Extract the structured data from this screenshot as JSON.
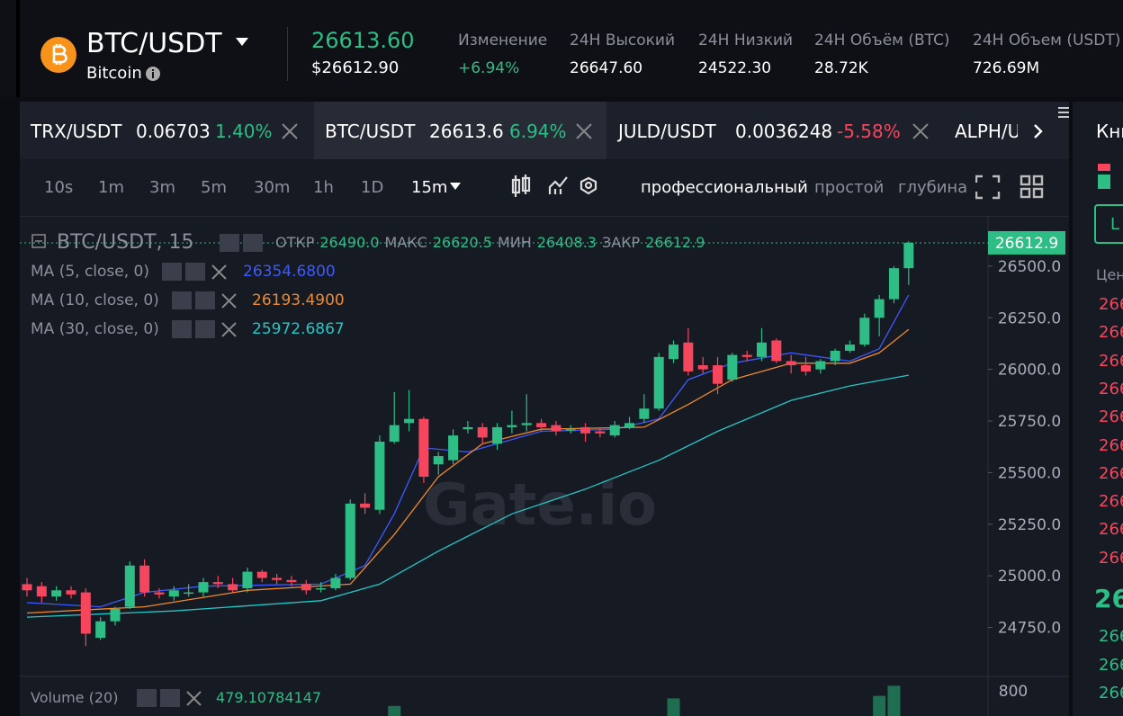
{
  "header": {
    "pair": "BTC/USDT",
    "name": "Bitcoin",
    "last": "26613.60",
    "last_usd": "$26612.90",
    "stats": [
      {
        "label": "Изменение",
        "value": "+6.94%"
      },
      {
        "label": "24H Высокий",
        "value": "26647.60"
      },
      {
        "label": "24H Низкий",
        "value": "24522.30"
      },
      {
        "label": "24H Объём (BTC)",
        "value": "28.72K"
      },
      {
        "label": "24H Объем (USDT)",
        "value": "726.69M"
      }
    ]
  },
  "tabs": [
    {
      "pair": "TRX/USDT",
      "price": "0.06703",
      "change": "1.40%"
    },
    {
      "pair": "BTC/USDT",
      "price": "26613.6",
      "change": "6.94%"
    },
    {
      "pair": "JULD/USDT",
      "price": "0.0036248",
      "change": "-5.58%"
    },
    {
      "pair": "ALPH/U"
    }
  ],
  "toolbar": {
    "intervals": [
      "10s",
      "1m",
      "3m",
      "5m",
      "30m",
      "1h",
      "1D"
    ],
    "selected": "15m",
    "modes": [
      "профессиональный",
      "простой",
      "глубина"
    ]
  },
  "legend": {
    "title": "BTC/USDT, 15",
    "ohlc": [
      {
        "label": "ОТКР",
        "value": "26490.0"
      },
      {
        "label": "МАКС",
        "value": "26620.5"
      },
      {
        "label": "МИН",
        "value": "26408.3"
      },
      {
        "label": "ЗАКР",
        "value": "26612.9"
      }
    ],
    "volume": {
      "label": "Volume (20)",
      "value": "479.10784147"
    }
  },
  "right_panel": {
    "title": "Кни",
    "button": "L",
    "column": "Цен",
    "asks": [
      "266",
      "266",
      "266",
      "266",
      "266",
      "266",
      "266",
      "266",
      "266",
      "266"
    ],
    "current": "26",
    "bids": [
      "266",
      "266",
      "266"
    ]
  },
  "chart_data": {
    "type": "candlestick",
    "watermark": "Gate.io",
    "up_color": "#2ebd85",
    "down_color": "#f6465d",
    "open": [
      24960,
      24950,
      24900,
      24930,
      24920,
      24700,
      24780,
      24850,
      25050,
      24920,
      24900,
      24920,
      24920,
      24970,
      24960,
      24940,
      25020,
      24990,
      24980,
      24960,
      24940,
      24940,
      24990,
      25350,
      25320,
      25650,
      25740,
      25760,
      25540,
      25560,
      25710,
      25720,
      25640,
      25720,
      25730,
      25740,
      25730,
      25710,
      25720,
      25700,
      25680,
      25720,
      25760,
      25810,
      26050,
      26130,
      26020,
      26020,
      25950,
      26070,
      26060,
      26140,
      26040,
      26020,
      26000,
      26040,
      26090,
      26120,
      26250,
      26340,
      26490
    ],
    "high": [
      24990,
      24970,
      24950,
      24950,
      24940,
      24800,
      24850,
      25070,
      25080,
      24940,
      24950,
      24960,
      24990,
      25000,
      24990,
      25040,
      25030,
      25010,
      25000,
      24980,
      24970,
      25010,
      25370,
      25400,
      25680,
      25890,
      25900,
      25770,
      25600,
      25710,
      25750,
      25740,
      25740,
      25800,
      25880,
      25760,
      25750,
      25730,
      25740,
      25720,
      25750,
      25770,
      25880,
      26080,
      26140,
      26200,
      26060,
      26060,
      26080,
      26090,
      26200,
      26150,
      26070,
      26060,
      26050,
      26100,
      26140,
      26270,
      26360,
      26500,
      26620.5
    ],
    "low": [
      24900,
      24870,
      24880,
      24890,
      24660,
      24690,
      24760,
      24840,
      24900,
      24890,
      24880,
      24900,
      24900,
      24940,
      24920,
      24920,
      24970,
      24960,
      24950,
      24910,
      24920,
      24930,
      24980,
      25300,
      25300,
      25640,
      25700,
      25450,
      25490,
      25540,
      25690,
      25640,
      25610,
      25690,
      25700,
      25700,
      25680,
      25690,
      25650,
      25670,
      25670,
      25710,
      25740,
      25800,
      26030,
      25970,
      25980,
      25880,
      25940,
      26040,
      26040,
      26030,
      25980,
      25970,
      25980,
      26020,
      26080,
      26110,
      26160,
      26320,
      26408.3
    ],
    "close": [
      24930,
      24900,
      24930,
      24910,
      24720,
      24780,
      24840,
      25050,
      24920,
      24910,
      24930,
      24920,
      24970,
      24960,
      24930,
      25020,
      24990,
      24980,
      24970,
      24930,
      24940,
      24990,
      25350,
      25330,
      25650,
      25730,
      25760,
      25480,
      25580,
      25680,
      25720,
      25670,
      25720,
      25730,
      25740,
      25720,
      25700,
      25710,
      25690,
      25690,
      25730,
      25740,
      25810,
      26060,
      26120,
      25990,
      26000,
      25930,
      26070,
      26060,
      26130,
      26040,
      26020,
      25990,
      26040,
      26090,
      26120,
      26250,
      26340,
      26490,
      26612.9
    ],
    "series": [
      {
        "name": "MA (5, close, 0)",
        "last": "26354.6800",
        "color": "#3d5afe",
        "x": [
          0,
          5,
          8,
          12,
          20,
          23,
          25,
          27,
          30,
          35,
          40,
          43,
          45,
          48,
          52,
          56,
          58,
          60
        ],
        "values": [
          24870,
          24850,
          24920,
          24950,
          24960,
          25050,
          25300,
          25620,
          25600,
          25700,
          25710,
          25760,
          25950,
          26030,
          26080,
          26040,
          26100,
          26360
        ]
      },
      {
        "name": "MA (10, close, 0)",
        "last": "26193.4900",
        "color": "#f0892e",
        "x": [
          0,
          8,
          15,
          22,
          25,
          28,
          31,
          35,
          42,
          45,
          48,
          52,
          56,
          58,
          60
        ],
        "values": [
          24820,
          24850,
          24930,
          24960,
          25200,
          25480,
          25640,
          25710,
          25720,
          25830,
          25950,
          26030,
          26030,
          26080,
          26193
        ]
      },
      {
        "name": "MA (30, close, 0)",
        "last": "25972.6867",
        "color": "#26c6c6",
        "x": [
          0,
          10,
          20,
          24,
          28,
          33,
          38,
          43,
          47,
          52,
          56,
          60
        ],
        "values": [
          24800,
          24830,
          24880,
          24960,
          25120,
          25300,
          25420,
          25560,
          25700,
          25850,
          25920,
          25972
        ]
      }
    ],
    "last_price": 26612.9,
    "ylim": [
      24513,
      26739
    ],
    "yticks": [
      {
        "value": 24750,
        "label": "24750.0"
      },
      {
        "value": 25000,
        "label": "25000.0"
      },
      {
        "value": 25250,
        "label": "25250.0"
      },
      {
        "value": 25500,
        "label": "25500.0"
      },
      {
        "value": 25750,
        "label": "25750.0"
      },
      {
        "value": 26000,
        "label": "26000.0"
      },
      {
        "value": 26250,
        "label": "26250.0"
      },
      {
        "value": 26500,
        "label": "26500.0"
      }
    ],
    "volume": {
      "x": [
        25,
        44,
        58,
        59
      ],
      "values": [
        740,
        770,
        780,
        820
      ],
      "ylim": [
        700,
        900
      ],
      "yticks": [
        800
      ]
    }
  }
}
